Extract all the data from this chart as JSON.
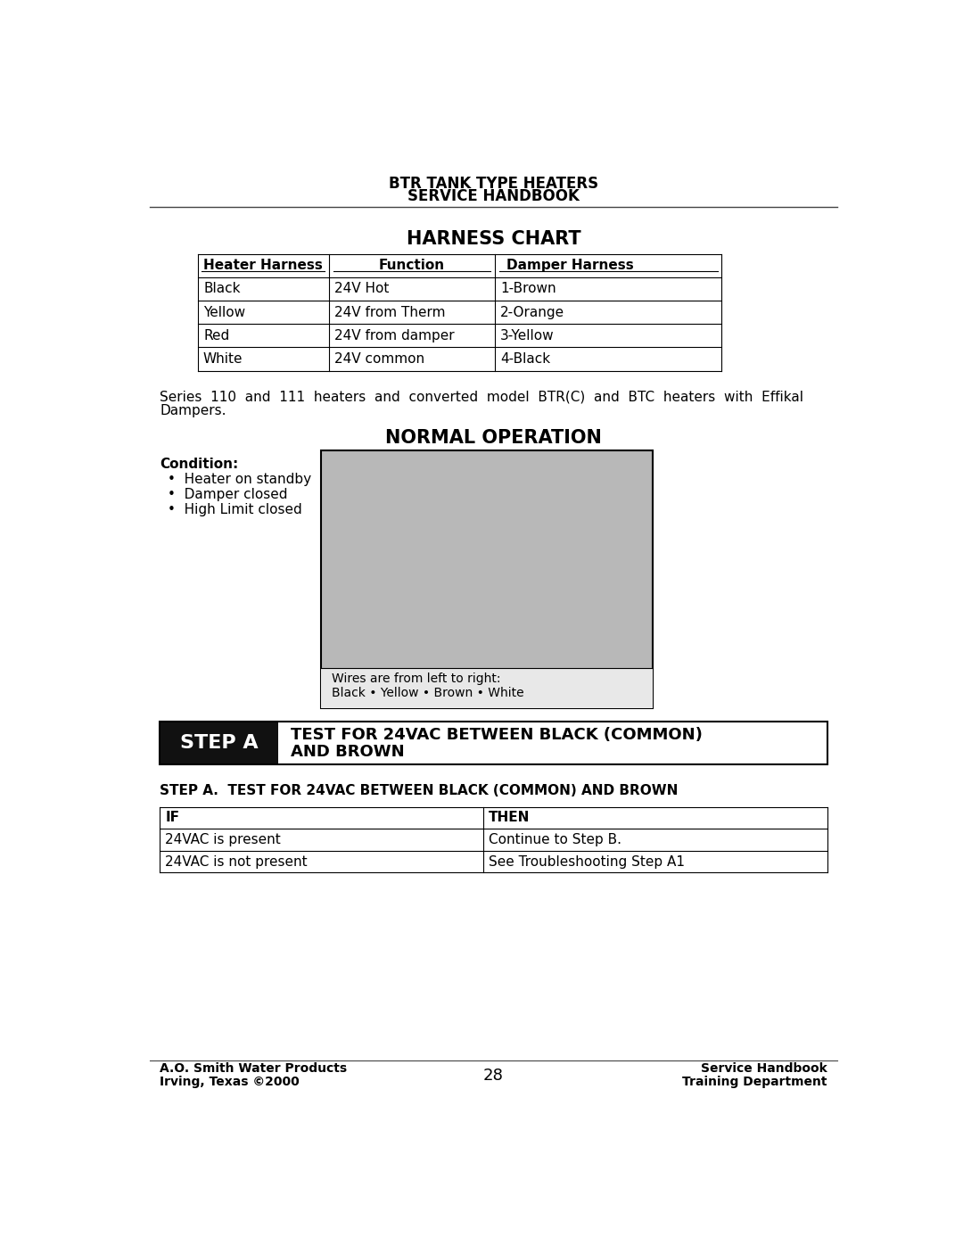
{
  "page_title_line1": "BTR TANK TYPE HEATERS",
  "page_title_line2": "SERVICE HANDBOOK",
  "section_title": "HARNESS CHART",
  "harness_table_headers": [
    "Heater Harness",
    "Function",
    "Damper Harness"
  ],
  "harness_table_rows": [
    [
      "Black",
      "24V Hot",
      "1-Brown"
    ],
    [
      "Yellow",
      "24V from Therm",
      "2-Orange"
    ],
    [
      "Red",
      "24V from damper",
      "3-Yellow"
    ],
    [
      "White",
      "24V common",
      "4-Black"
    ]
  ],
  "body_text_line1": "Series  110  and  111  heaters  and  converted  model  BTR(C)  and  BTC  heaters  with  Effikal",
  "body_text_line2": "Dampers.",
  "normal_op_title": "NORMAL OPERATION",
  "condition_label": "Condition:",
  "condition_bullets": [
    "Heater on standby",
    "Damper closed",
    "High Limit closed"
  ],
  "image_caption_line1": "Wires are from left to right:",
  "image_caption_line2": "Black • Yellow • Brown • White",
  "step_a_label": "STEP A",
  "step_a_title_line1": "TEST FOR 24VAC BETWEEN BLACK (COMMON)",
  "step_a_title_line2": "AND BROWN",
  "step_a_heading": "STEP A.  TEST FOR 24VAC BETWEEN BLACK (COMMON) AND BROWN",
  "if_then_headers": [
    "IF",
    "THEN"
  ],
  "if_then_rows": [
    [
      "24VAC is present",
      "Continue to Step B."
    ],
    [
      "24VAC is not present",
      "See Troubleshooting Step A1"
    ]
  ],
  "footer_left_line1": "A.O. Smith Water Products",
  "footer_left_line2": "Irving, Texas ©2000",
  "footer_center": "28",
  "footer_right_line1": "Service Handbook",
  "footer_right_line2": "Training Department",
  "bg_color": "#ffffff",
  "text_color": "#000000"
}
